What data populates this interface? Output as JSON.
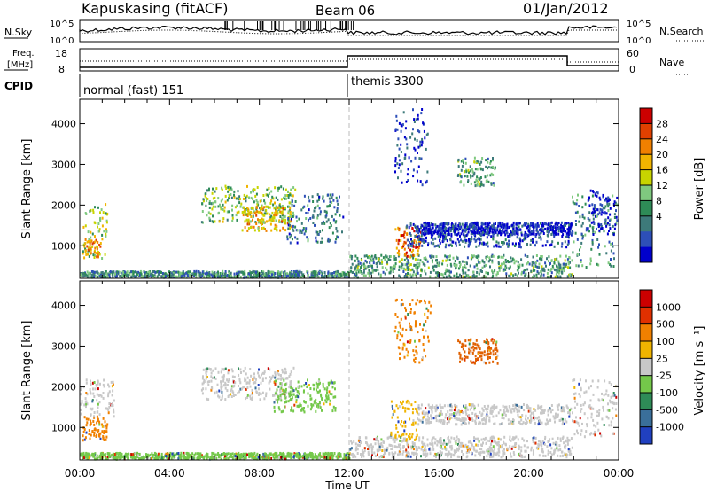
{
  "header": {
    "station": "Kapuskasing (fitACF)",
    "beam": "Beam 06",
    "date": "01/Jan/2012"
  },
  "summary": {
    "nsky_label": "N.Sky",
    "nsearch_label": "N.Search",
    "noise_ticks": [
      "10^5",
      "10^0"
    ],
    "noise_ticks_right": [
      "10^5",
      "10^0"
    ],
    "freq_label_line1": "Freq.",
    "freq_label_line2": "[MHz]",
    "freq_ticks": [
      "18",
      "8"
    ],
    "nave_label": "Nave",
    "nave_ticks": [
      "60",
      "0"
    ],
    "cpid_label": "CPID",
    "cpid_segments": [
      {
        "name": "normal (fast) 151",
        "start_hour": 0,
        "end_hour": 12
      },
      {
        "name": "themis 3300",
        "start_hour": 12,
        "end_hour": 24
      }
    ]
  },
  "chart_data": [
    {
      "type": "heatmap",
      "title": "",
      "ylabel": "Slant Range [km]",
      "xlabel": "",
      "xlim_hours": [
        0,
        24
      ],
      "ylim": [
        200,
        4600
      ],
      "yticks": [
        "1000",
        "2000",
        "3000",
        "4000"
      ],
      "colorbar_label": "Power [dB]",
      "colorbar_ticks": [
        "28",
        "24",
        "20",
        "16",
        "12",
        "8",
        "4"
      ],
      "colorbar_colors": [
        "#0000cc",
        "#2d4fb8",
        "#3d7a7a",
        "#2e8b57",
        "#7fc97f",
        "#c8d400",
        "#f0b400",
        "#f08000",
        "#e04000",
        "#cc0000"
      ],
      "regions": [
        {
          "t0": 0.1,
          "t1": 1.2,
          "r0": 700,
          "r1": 2100,
          "level": 0.5
        },
        {
          "t0": 0.2,
          "t1": 0.9,
          "r0": 750,
          "r1": 1200,
          "level": 0.75
        },
        {
          "t0": 5.4,
          "t1": 9.6,
          "r0": 1600,
          "r1": 2500,
          "level": 0.45
        },
        {
          "t0": 7.2,
          "t1": 9.4,
          "r0": 1400,
          "r1": 2000,
          "level": 0.65
        },
        {
          "t0": 9.2,
          "t1": 11.7,
          "r0": 1100,
          "r1": 2300,
          "level": 0.25
        },
        {
          "t0": 0.0,
          "t1": 12.0,
          "r0": 250,
          "r1": 400,
          "level": 0.3
        },
        {
          "t0": 12.0,
          "t1": 21.9,
          "r0": 250,
          "r1": 800,
          "level": 0.35
        },
        {
          "t0": 14.0,
          "t1": 15.2,
          "r0": 750,
          "r1": 1500,
          "level": 0.8
        },
        {
          "t0": 14.5,
          "t1": 21.9,
          "r0": 1000,
          "r1": 1600,
          "level": 0.15
        },
        {
          "t0": 15.2,
          "t1": 21.9,
          "r0": 1300,
          "r1": 1600,
          "level": 0.05
        },
        {
          "t0": 14.0,
          "t1": 15.5,
          "r0": 2500,
          "r1": 4400,
          "level": 0.1
        },
        {
          "t0": 16.8,
          "t1": 18.5,
          "r0": 2500,
          "r1": 3200,
          "level": 0.35
        },
        {
          "t0": 21.9,
          "t1": 23.9,
          "r0": 500,
          "r1": 2300,
          "level": 0.3
        },
        {
          "t0": 22.6,
          "t1": 23.9,
          "r0": 1300,
          "r1": 2400,
          "level": 0.05
        }
      ]
    },
    {
      "type": "heatmap",
      "title": "",
      "ylabel": "Slant Range [km]",
      "xlabel": "Time UT",
      "xlim_hours": [
        0,
        24
      ],
      "ylim": [
        200,
        4600
      ],
      "yticks": [
        "1000",
        "2000",
        "3000",
        "4000"
      ],
      "xticks": [
        "00:00",
        "04:00",
        "08:00",
        "12:00",
        "16:00",
        "20:00",
        "00:00"
      ],
      "colorbar_label": "Velocity [m s⁻¹]",
      "colorbar_ticks": [
        "1000",
        "500",
        "100",
        "25",
        "-25",
        "-100",
        "-500",
        "-1000"
      ],
      "colorbar_colors": [
        "#2040c0",
        "#3a6f9a",
        "#2e8b57",
        "#74c84a",
        "#c8c8c8",
        "#f0b400",
        "#f08000",
        "#e03000",
        "#cc0000"
      ],
      "regions": [
        {
          "t0": 0.1,
          "t1": 1.2,
          "r0": 700,
          "r1": 1300,
          "color": "#f08000"
        },
        {
          "t0": 0.0,
          "t1": 1.5,
          "r0": 1300,
          "r1": 2200,
          "color": "#c8c8c8"
        },
        {
          "t0": 5.4,
          "t1": 9.5,
          "r0": 1700,
          "r1": 2500,
          "color": "#c8c8c8"
        },
        {
          "t0": 8.6,
          "t1": 11.4,
          "r0": 1400,
          "r1": 2200,
          "color": "#74c84a"
        },
        {
          "t0": 0.0,
          "t1": 12.0,
          "r0": 250,
          "r1": 400,
          "color": "#74c84a"
        },
        {
          "t0": 12.0,
          "t1": 21.9,
          "r0": 300,
          "r1": 800,
          "color": "#c8c8c8"
        },
        {
          "t0": 13.8,
          "t1": 15.0,
          "r0": 700,
          "r1": 1700,
          "color": "#f0b400"
        },
        {
          "t0": 15.0,
          "t1": 21.9,
          "r0": 1100,
          "r1": 1600,
          "color": "#c8c8c8"
        },
        {
          "t0": 14.0,
          "t1": 15.6,
          "r0": 2600,
          "r1": 4200,
          "color": "#f08000"
        },
        {
          "t0": 16.8,
          "t1": 18.6,
          "r0": 2600,
          "r1": 3200,
          "color": "#e06000"
        },
        {
          "t0": 21.9,
          "t1": 23.9,
          "r0": 800,
          "r1": 2200,
          "color": "#c8c8c8"
        }
      ]
    }
  ]
}
